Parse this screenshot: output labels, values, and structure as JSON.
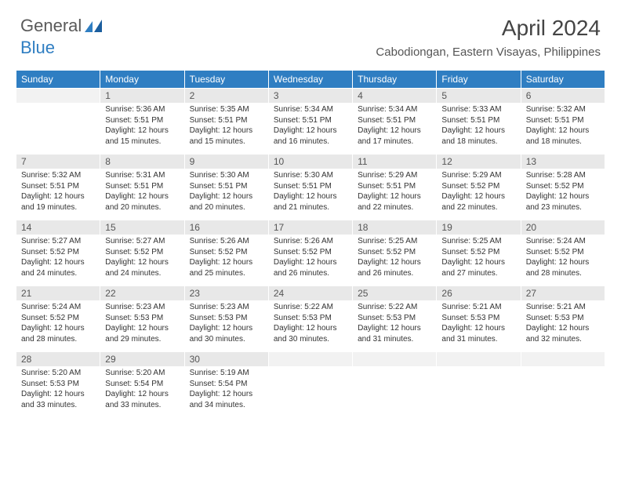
{
  "brand": {
    "part1": "General",
    "part2": "Blue"
  },
  "header": {
    "month_title": "April 2024",
    "location": "Cabodiongan, Eastern Visayas, Philippines"
  },
  "colors": {
    "header_bg": "#2f7ec2",
    "header_text": "#ffffff",
    "daynum_bg": "#e8e8e8",
    "text": "#333333",
    "empty_bg": "#f2f2f2"
  },
  "weekdays": [
    "Sunday",
    "Monday",
    "Tuesday",
    "Wednesday",
    "Thursday",
    "Friday",
    "Saturday"
  ],
  "weeks": [
    [
      null,
      {
        "n": "1",
        "sr": "Sunrise: 5:36 AM",
        "ss": "Sunset: 5:51 PM",
        "dl": "Daylight: 12 hours and 15 minutes."
      },
      {
        "n": "2",
        "sr": "Sunrise: 5:35 AM",
        "ss": "Sunset: 5:51 PM",
        "dl": "Daylight: 12 hours and 15 minutes."
      },
      {
        "n": "3",
        "sr": "Sunrise: 5:34 AM",
        "ss": "Sunset: 5:51 PM",
        "dl": "Daylight: 12 hours and 16 minutes."
      },
      {
        "n": "4",
        "sr": "Sunrise: 5:34 AM",
        "ss": "Sunset: 5:51 PM",
        "dl": "Daylight: 12 hours and 17 minutes."
      },
      {
        "n": "5",
        "sr": "Sunrise: 5:33 AM",
        "ss": "Sunset: 5:51 PM",
        "dl": "Daylight: 12 hours and 18 minutes."
      },
      {
        "n": "6",
        "sr": "Sunrise: 5:32 AM",
        "ss": "Sunset: 5:51 PM",
        "dl": "Daylight: 12 hours and 18 minutes."
      }
    ],
    [
      {
        "n": "7",
        "sr": "Sunrise: 5:32 AM",
        "ss": "Sunset: 5:51 PM",
        "dl": "Daylight: 12 hours and 19 minutes."
      },
      {
        "n": "8",
        "sr": "Sunrise: 5:31 AM",
        "ss": "Sunset: 5:51 PM",
        "dl": "Daylight: 12 hours and 20 minutes."
      },
      {
        "n": "9",
        "sr": "Sunrise: 5:30 AM",
        "ss": "Sunset: 5:51 PM",
        "dl": "Daylight: 12 hours and 20 minutes."
      },
      {
        "n": "10",
        "sr": "Sunrise: 5:30 AM",
        "ss": "Sunset: 5:51 PM",
        "dl": "Daylight: 12 hours and 21 minutes."
      },
      {
        "n": "11",
        "sr": "Sunrise: 5:29 AM",
        "ss": "Sunset: 5:51 PM",
        "dl": "Daylight: 12 hours and 22 minutes."
      },
      {
        "n": "12",
        "sr": "Sunrise: 5:29 AM",
        "ss": "Sunset: 5:52 PM",
        "dl": "Daylight: 12 hours and 22 minutes."
      },
      {
        "n": "13",
        "sr": "Sunrise: 5:28 AM",
        "ss": "Sunset: 5:52 PM",
        "dl": "Daylight: 12 hours and 23 minutes."
      }
    ],
    [
      {
        "n": "14",
        "sr": "Sunrise: 5:27 AM",
        "ss": "Sunset: 5:52 PM",
        "dl": "Daylight: 12 hours and 24 minutes."
      },
      {
        "n": "15",
        "sr": "Sunrise: 5:27 AM",
        "ss": "Sunset: 5:52 PM",
        "dl": "Daylight: 12 hours and 24 minutes."
      },
      {
        "n": "16",
        "sr": "Sunrise: 5:26 AM",
        "ss": "Sunset: 5:52 PM",
        "dl": "Daylight: 12 hours and 25 minutes."
      },
      {
        "n": "17",
        "sr": "Sunrise: 5:26 AM",
        "ss": "Sunset: 5:52 PM",
        "dl": "Daylight: 12 hours and 26 minutes."
      },
      {
        "n": "18",
        "sr": "Sunrise: 5:25 AM",
        "ss": "Sunset: 5:52 PM",
        "dl": "Daylight: 12 hours and 26 minutes."
      },
      {
        "n": "19",
        "sr": "Sunrise: 5:25 AM",
        "ss": "Sunset: 5:52 PM",
        "dl": "Daylight: 12 hours and 27 minutes."
      },
      {
        "n": "20",
        "sr": "Sunrise: 5:24 AM",
        "ss": "Sunset: 5:52 PM",
        "dl": "Daylight: 12 hours and 28 minutes."
      }
    ],
    [
      {
        "n": "21",
        "sr": "Sunrise: 5:24 AM",
        "ss": "Sunset: 5:52 PM",
        "dl": "Daylight: 12 hours and 28 minutes."
      },
      {
        "n": "22",
        "sr": "Sunrise: 5:23 AM",
        "ss": "Sunset: 5:53 PM",
        "dl": "Daylight: 12 hours and 29 minutes."
      },
      {
        "n": "23",
        "sr": "Sunrise: 5:23 AM",
        "ss": "Sunset: 5:53 PM",
        "dl": "Daylight: 12 hours and 30 minutes."
      },
      {
        "n": "24",
        "sr": "Sunrise: 5:22 AM",
        "ss": "Sunset: 5:53 PM",
        "dl": "Daylight: 12 hours and 30 minutes."
      },
      {
        "n": "25",
        "sr": "Sunrise: 5:22 AM",
        "ss": "Sunset: 5:53 PM",
        "dl": "Daylight: 12 hours and 31 minutes."
      },
      {
        "n": "26",
        "sr": "Sunrise: 5:21 AM",
        "ss": "Sunset: 5:53 PM",
        "dl": "Daylight: 12 hours and 31 minutes."
      },
      {
        "n": "27",
        "sr": "Sunrise: 5:21 AM",
        "ss": "Sunset: 5:53 PM",
        "dl": "Daylight: 12 hours and 32 minutes."
      }
    ],
    [
      {
        "n": "28",
        "sr": "Sunrise: 5:20 AM",
        "ss": "Sunset: 5:53 PM",
        "dl": "Daylight: 12 hours and 33 minutes."
      },
      {
        "n": "29",
        "sr": "Sunrise: 5:20 AM",
        "ss": "Sunset: 5:54 PM",
        "dl": "Daylight: 12 hours and 33 minutes."
      },
      {
        "n": "30",
        "sr": "Sunrise: 5:19 AM",
        "ss": "Sunset: 5:54 PM",
        "dl": "Daylight: 12 hours and 34 minutes."
      },
      null,
      null,
      null,
      null
    ]
  ]
}
